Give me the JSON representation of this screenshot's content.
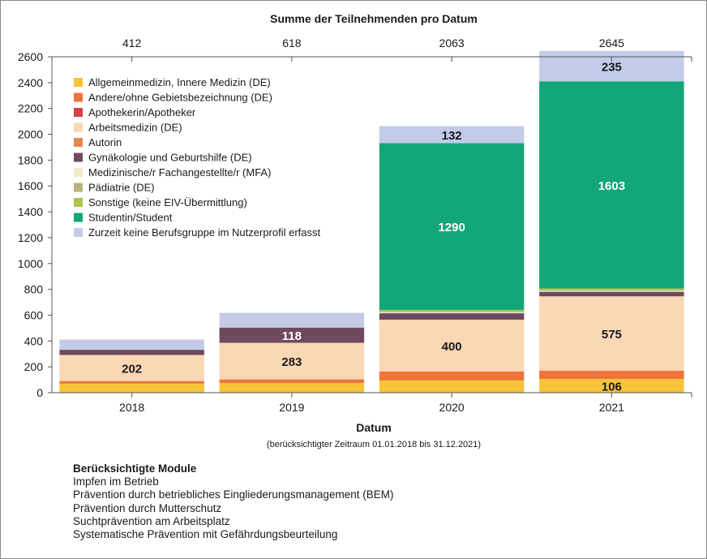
{
  "chart_data": {
    "type": "bar",
    "stacked": true,
    "title": "Summe der Teilnehmenden pro Datum",
    "xlabel": "Datum",
    "xlabel_note": "(berücksichtigter Zeitraum 01.01.2018 bis 31.12.2021)",
    "ylabel": "",
    "ylim": [
      0,
      2600
    ],
    "yticks": [
      "0",
      "200",
      "400",
      "600",
      "800",
      "1000",
      "1200",
      "1400",
      "1600",
      "1800",
      "2000",
      "2200",
      "2400",
      "2600"
    ],
    "categories": [
      "2018",
      "2019",
      "2020",
      "2021"
    ],
    "totals": [
      "412",
      "618",
      "2063",
      "2645"
    ],
    "grid": false,
    "legend_position": "top-left",
    "series": [
      {
        "name": "Allgemeinmedizin, Innere Medizin (DE)",
        "color": "#f7c439",
        "values": [
          70,
          75,
          95,
          106
        ]
      },
      {
        "name": "Andere/ohne Gebietsbezeichnung (DE)",
        "color": "#ec7539",
        "values": [
          20,
          28,
          70,
          65
        ]
      },
      {
        "name": "Apothekerin/Apotheker",
        "color": "#d64141",
        "values": [
          0,
          0,
          0,
          0
        ]
      },
      {
        "name": "Arbeitsmedizin (DE)",
        "color": "#fad7b5",
        "values": [
          202,
          283,
          400,
          575
        ]
      },
      {
        "name": "Autorin",
        "color": "#e08a55",
        "values": [
          0,
          0,
          0,
          0
        ]
      },
      {
        "name": "Gynäkologie und Geburtshilfe (DE)",
        "color": "#6e4a5c",
        "values": [
          40,
          118,
          50,
          35
        ]
      },
      {
        "name": "Medizinische/r Fachangestellte/r (MFA)",
        "color": "#efedcb",
        "values": [
          0,
          0,
          8,
          8
        ]
      },
      {
        "name": "Pädiatrie (DE)",
        "color": "#b9b57a",
        "values": [
          0,
          0,
          5,
          8
        ]
      },
      {
        "name": "Sonstige (keine EIV-Übermittlung)",
        "color": "#a8c64e",
        "values": [
          0,
          0,
          13,
          10
        ]
      },
      {
        "name": "Studentin/Student",
        "color": "#12a678",
        "values": [
          0,
          0,
          1290,
          1603
        ]
      },
      {
        "name": "Zurzeit keine Berufsgruppe im Nutzerprofil erfasst",
        "color": "#c3cbe9",
        "values": [
          80,
          114,
          132,
          235
        ]
      }
    ],
    "data_labels": [
      {
        "category": "2018",
        "series": "Arbeitsmedizin (DE)",
        "text": "202",
        "color": "#1a1a1a"
      },
      {
        "category": "2019",
        "series": "Arbeitsmedizin (DE)",
        "text": "283",
        "color": "#1a1a1a"
      },
      {
        "category": "2019",
        "series": "Gynäkologie und Geburtshilfe (DE)",
        "text": "118",
        "color": "#ffffff"
      },
      {
        "category": "2020",
        "series": "Arbeitsmedizin (DE)",
        "text": "400",
        "color": "#1a1a1a"
      },
      {
        "category": "2020",
        "series": "Studentin/Student",
        "text": "1290",
        "color": "#ffffff"
      },
      {
        "category": "2020",
        "series": "Zurzeit keine Berufsgruppe im Nutzerprofil erfasst",
        "text": "132",
        "color": "#1a1a1a"
      },
      {
        "category": "2021",
        "series": "Allgemeinmedizin, Innere Medizin (DE)",
        "text": "106",
        "color": "#1a1a1a"
      },
      {
        "category": "2021",
        "series": "Arbeitsmedizin (DE)",
        "text": "575",
        "color": "#1a1a1a"
      },
      {
        "category": "2021",
        "series": "Studentin/Student",
        "text": "1603",
        "color": "#ffffff"
      },
      {
        "category": "2021",
        "series": "Zurzeit keine Berufsgruppe im Nutzerprofil erfasst",
        "text": "235",
        "color": "#1a1a1a"
      }
    ]
  },
  "modules": {
    "title": "Berücksichtigte Module",
    "items": [
      "Impfen im Betrieb",
      "Prävention durch betriebliches Eingliederungsmanagement (BEM)",
      "Prävention durch Mutterschutz",
      "Suchtprävention am Arbeitsplatz",
      "Systematische Prävention mit Gefährdungsbeurteilung"
    ]
  }
}
